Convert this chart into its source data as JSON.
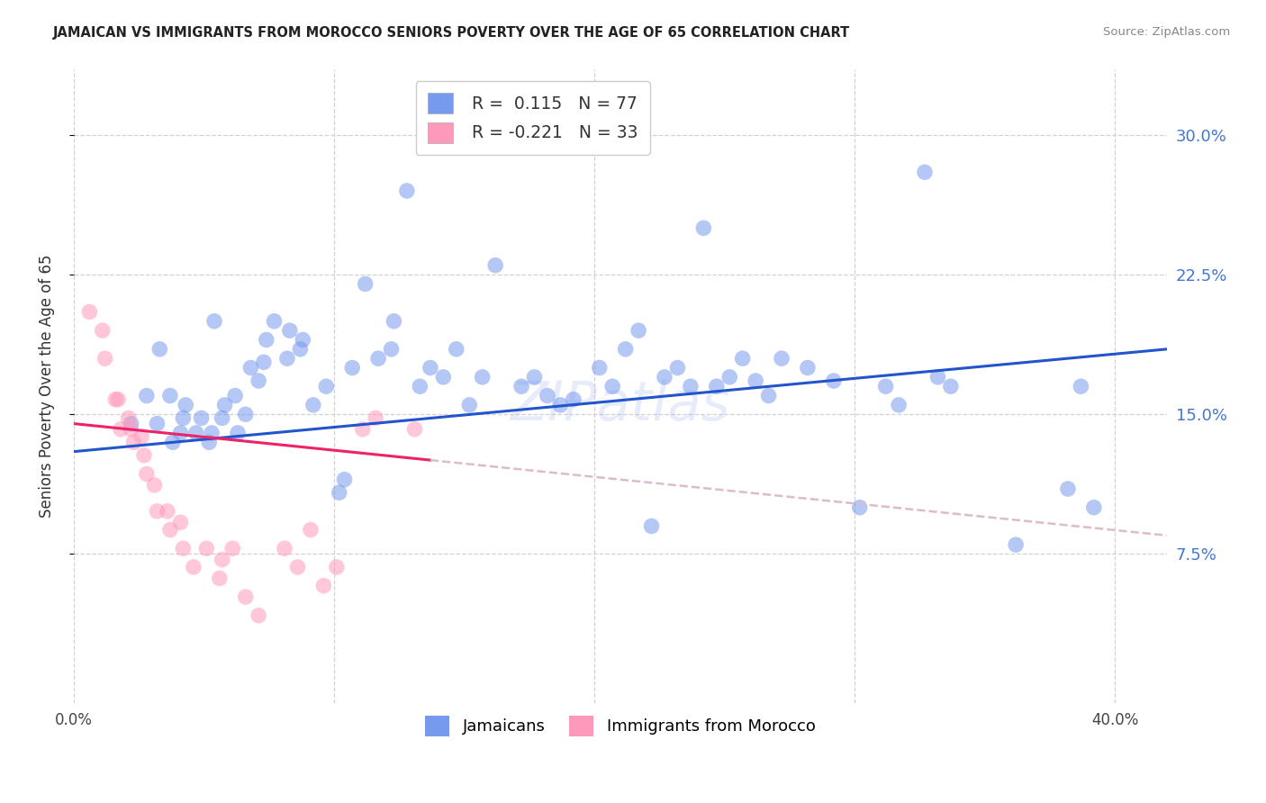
{
  "title": "JAMAICAN VS IMMIGRANTS FROM MOROCCO SENIORS POVERTY OVER THE AGE OF 65 CORRELATION CHART",
  "source": "Source: ZipAtlas.com",
  "ylabel": "Seniors Poverty Over the Age of 65",
  "xlim": [
    0.0,
    0.42
  ],
  "ylim": [
    -0.005,
    0.335
  ],
  "yticks": [
    0.075,
    0.15,
    0.225,
    0.3
  ],
  "ytick_labels": [
    "7.5%",
    "15.0%",
    "22.5%",
    "30.0%"
  ],
  "xticks": [
    0.0,
    0.1,
    0.2,
    0.3,
    0.4
  ],
  "xtick_labels": [
    "0.0%",
    "",
    "",
    "",
    "40.0%"
  ],
  "blue_color": "#7799ee",
  "pink_color": "#ff99bb",
  "blue_line_color": "#2255cc",
  "pink_line_color": "#ee2266",
  "pink_dashed_color": "#ddbbcc",
  "right_tick_color": "#4477cc",
  "watermark": "ZIPatlas",
  "blue_x": [
    0.022,
    0.028,
    0.032,
    0.033,
    0.037,
    0.038,
    0.041,
    0.042,
    0.043,
    0.047,
    0.049,
    0.052,
    0.053,
    0.054,
    0.057,
    0.058,
    0.062,
    0.063,
    0.066,
    0.068,
    0.071,
    0.073,
    0.074,
    0.077,
    0.082,
    0.083,
    0.087,
    0.088,
    0.092,
    0.097,
    0.102,
    0.104,
    0.107,
    0.112,
    0.117,
    0.122,
    0.123,
    0.128,
    0.133,
    0.137,
    0.142,
    0.147,
    0.152,
    0.157,
    0.162,
    0.172,
    0.177,
    0.182,
    0.187,
    0.192,
    0.202,
    0.207,
    0.212,
    0.217,
    0.222,
    0.227,
    0.232,
    0.237,
    0.242,
    0.247,
    0.252,
    0.257,
    0.262,
    0.267,
    0.272,
    0.282,
    0.292,
    0.302,
    0.312,
    0.317,
    0.327,
    0.332,
    0.337,
    0.362,
    0.382,
    0.387,
    0.392
  ],
  "blue_y": [
    0.145,
    0.16,
    0.145,
    0.185,
    0.16,
    0.135,
    0.14,
    0.148,
    0.155,
    0.14,
    0.148,
    0.135,
    0.14,
    0.2,
    0.148,
    0.155,
    0.16,
    0.14,
    0.15,
    0.175,
    0.168,
    0.178,
    0.19,
    0.2,
    0.18,
    0.195,
    0.185,
    0.19,
    0.155,
    0.165,
    0.108,
    0.115,
    0.175,
    0.22,
    0.18,
    0.185,
    0.2,
    0.27,
    0.165,
    0.175,
    0.17,
    0.185,
    0.155,
    0.17,
    0.23,
    0.165,
    0.17,
    0.16,
    0.155,
    0.158,
    0.175,
    0.165,
    0.185,
    0.195,
    0.09,
    0.17,
    0.175,
    0.165,
    0.25,
    0.165,
    0.17,
    0.18,
    0.168,
    0.16,
    0.18,
    0.175,
    0.168,
    0.1,
    0.165,
    0.155,
    0.28,
    0.17,
    0.165,
    0.08,
    0.11,
    0.165,
    0.1
  ],
  "pink_x": [
    0.006,
    0.011,
    0.012,
    0.016,
    0.017,
    0.018,
    0.021,
    0.022,
    0.023,
    0.026,
    0.027,
    0.028,
    0.031,
    0.032,
    0.036,
    0.037,
    0.041,
    0.042,
    0.046,
    0.051,
    0.056,
    0.057,
    0.061,
    0.066,
    0.071,
    0.081,
    0.086,
    0.091,
    0.096,
    0.101,
    0.111,
    0.116,
    0.131
  ],
  "pink_y": [
    0.205,
    0.195,
    0.18,
    0.158,
    0.158,
    0.142,
    0.148,
    0.142,
    0.135,
    0.138,
    0.128,
    0.118,
    0.112,
    0.098,
    0.098,
    0.088,
    0.092,
    0.078,
    0.068,
    0.078,
    0.062,
    0.072,
    0.078,
    0.052,
    0.042,
    0.078,
    0.068,
    0.088,
    0.058,
    0.068,
    0.142,
    0.148,
    0.142
  ],
  "blue_line_y0": 0.13,
  "blue_line_y1": 0.185,
  "pink_line_y0": 0.145,
  "pink_line_y1": 0.085
}
